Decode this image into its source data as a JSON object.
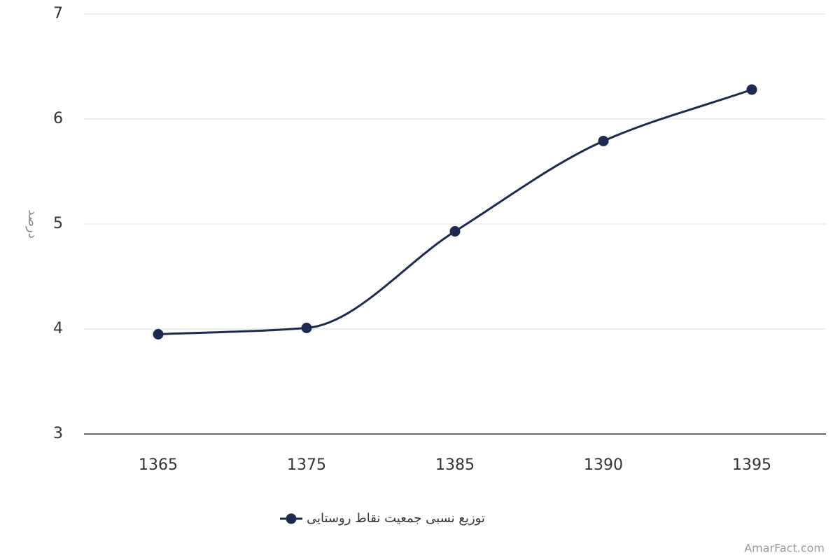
{
  "chart_data": {
    "type": "line",
    "y_label": "درصد",
    "categories": [
      "1365",
      "1375",
      "1385",
      "1390",
      "1395"
    ],
    "series": [
      {
        "name": "توزیع نسبی جمعیت نقاط روستایی",
        "color": "#1b2a4e",
        "values": [
          3.95,
          4.01,
          4.93,
          5.79,
          6.28
        ]
      }
    ],
    "ylim": [
      3,
      7
    ],
    "yticks": [
      3,
      4,
      5,
      6,
      7
    ],
    "grid": true,
    "watermark": "AmarFact.com"
  }
}
